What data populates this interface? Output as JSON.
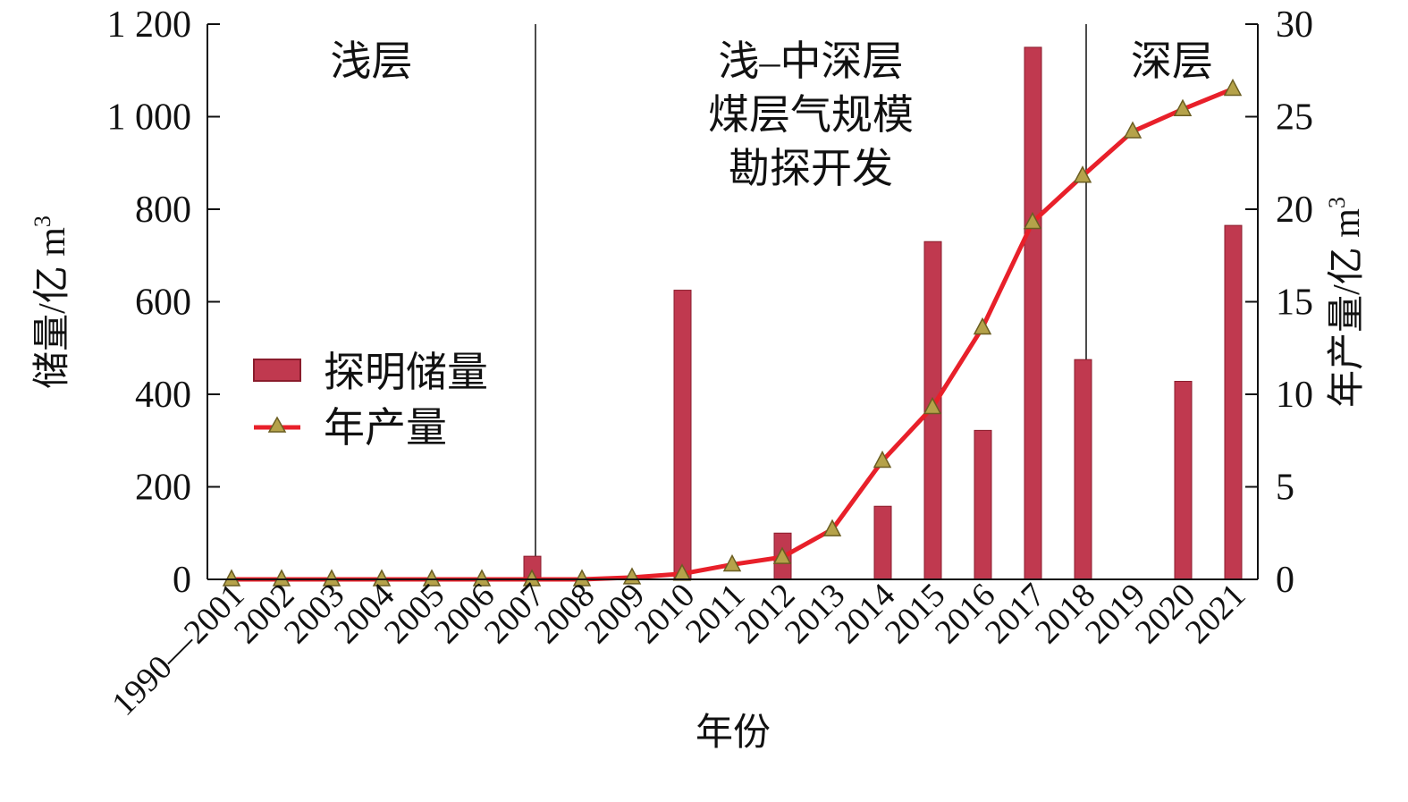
{
  "chart_data": {
    "type": "bar",
    "xlabel": "年份",
    "ylabel_left": "储量/亿 m",
    "ylabel_left_sup": "3",
    "ylabel_right": "年产量/亿 m",
    "ylabel_right_sup": "3",
    "categories": [
      "1990—2001",
      "2002",
      "2003",
      "2004",
      "2005",
      "2006",
      "2007",
      "2008",
      "2009",
      "2010",
      "2011",
      "2012",
      "2013",
      "2014",
      "2015",
      "2016",
      "2017",
      "2018",
      "2019",
      "2020",
      "2021"
    ],
    "ylim_left": [
      0,
      1200
    ],
    "yticks_left": [
      0,
      200,
      400,
      600,
      800,
      1000,
      1200
    ],
    "ytick_labels_left": [
      "0",
      "200",
      "400",
      "600",
      "800",
      "1 000",
      "1 200"
    ],
    "ylim_right": [
      0,
      30
    ],
    "yticks_right": [
      0,
      5,
      10,
      15,
      20,
      25,
      30
    ],
    "ytick_labels_right": [
      "0",
      "5",
      "10",
      "15",
      "20",
      "25",
      "30"
    ],
    "series": [
      {
        "name": "探明储量",
        "kind": "bar",
        "axis": "left",
        "color": "#c0394f",
        "values": [
          0,
          0,
          0,
          0,
          0,
          0,
          50,
          0,
          0,
          625,
          0,
          100,
          0,
          158,
          730,
          322,
          1150,
          475,
          0,
          428,
          765
        ]
      },
      {
        "name": "年产量",
        "kind": "line",
        "axis": "right",
        "color": "#e8202a",
        "marker_color": "#b5a24a",
        "values": [
          0,
          0,
          0,
          0,
          0,
          0,
          0,
          0,
          0.1,
          0.3,
          0.8,
          1.2,
          2.7,
          6.4,
          9.3,
          13.6,
          19.3,
          21.8,
          24.2,
          25.4,
          26.5
        ]
      }
    ],
    "regions": [
      {
        "label_lines": [
          "浅层"
        ],
        "from_index": 0,
        "to_index": 6
      },
      {
        "label_lines": [
          "浅–中深层",
          "煤层气规模",
          "勘探开发"
        ],
        "from_index": 6,
        "to_index": 17
      },
      {
        "label_lines": [
          "深层"
        ],
        "from_index": 17,
        "to_index": 20
      }
    ],
    "region_boundaries_after_index": [
      6,
      17
    ],
    "legend": {
      "position": "left",
      "entries": [
        "探明储量",
        "年产量"
      ]
    },
    "grid": false
  }
}
